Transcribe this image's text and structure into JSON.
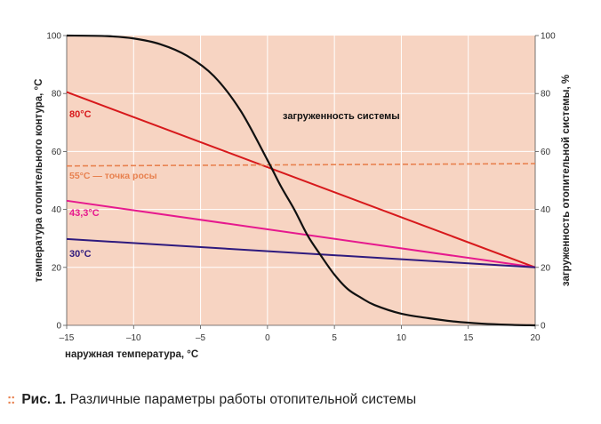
{
  "chart_data": {
    "type": "line",
    "x_axis": {
      "label": "наружная температура, °C",
      "range": [
        -15,
        20
      ],
      "ticks": [
        -15,
        -10,
        -5,
        0,
        5,
        10,
        15,
        20
      ],
      "tick_labels": [
        "–15",
        "–10",
        "–5",
        "0",
        "5",
        "10",
        "15",
        "20"
      ]
    },
    "y_axis_left": {
      "label": "температура отопительного контура, °C",
      "range": [
        0,
        100
      ],
      "ticks": [
        0,
        20,
        40,
        60,
        80,
        100
      ],
      "tick_labels": [
        "0",
        "20",
        "40",
        "60",
        "80",
        "100"
      ]
    },
    "y_axis_right": {
      "label": "загруженность отопительной системы, %",
      "range": [
        0,
        100
      ],
      "ticks": [
        0,
        20,
        40,
        60,
        80,
        100
      ],
      "tick_labels": [
        "0",
        "20",
        "40",
        "60",
        "80",
        "100"
      ]
    },
    "grid": true,
    "background_color": "#f7d4c2",
    "series": [
      {
        "name": "80°C",
        "label": "80°C",
        "color": "#d7191c",
        "style": "solid",
        "x": [
          -15,
          20
        ],
        "y": [
          80.5,
          20
        ]
      },
      {
        "name": "55°C — точка росы",
        "label": "55°C — точка росы",
        "color": "#e8814f",
        "style": "dashed",
        "x": [
          -15,
          20
        ],
        "y": [
          55,
          55.8
        ]
      },
      {
        "name": "43,3°C",
        "label": "43,3°C",
        "color": "#e6198e",
        "style": "solid",
        "x": [
          -15,
          20
        ],
        "y": [
          43,
          20
        ]
      },
      {
        "name": "30°C",
        "label": "30°C",
        "color": "#2e1a7e",
        "style": "solid",
        "x": [
          -15,
          20
        ],
        "y": [
          29.8,
          20
        ]
      },
      {
        "name": "загруженность системы",
        "label": "загруженность системы",
        "color": "#111111",
        "style": "solid",
        "axis": "right",
        "x": [
          -15,
          -12,
          -10,
          -8,
          -6,
          -4,
          -2,
          0,
          1,
          2,
          3,
          4,
          5,
          6,
          7,
          8,
          10,
          12,
          14,
          16,
          18,
          20
        ],
        "y": [
          100,
          99.8,
          99,
          97,
          93,
          86,
          74,
          57,
          48,
          40,
          31,
          24,
          17.5,
          12.5,
          9.5,
          7,
          4,
          2.5,
          1.3,
          0.6,
          0.2,
          0
        ]
      }
    ]
  },
  "caption": {
    "bullet": "::",
    "figure_label": "Рис. 1.",
    "text": "Различные параметры работы отопительной системы"
  }
}
